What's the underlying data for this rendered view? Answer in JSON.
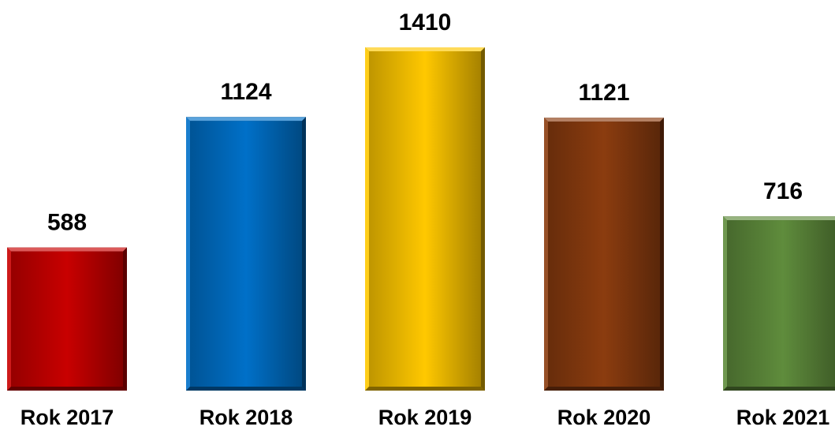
{
  "chart_data": {
    "type": "bar",
    "title": "",
    "xlabel": "",
    "ylabel": "",
    "categories": [
      "Rok 2017",
      "Rok 2018",
      "Rok 2019",
      "Rok 2020",
      "Rok 2021"
    ],
    "values": [
      588,
      1124,
      1410,
      1121,
      716
    ],
    "colors": [
      "#c80000",
      "#0070c8",
      "#ffc800",
      "#8b3c0f",
      "#5f8c3c"
    ],
    "ylim": [
      0,
      1410
    ],
    "grid": false,
    "legend": "none",
    "data_labels": true
  }
}
